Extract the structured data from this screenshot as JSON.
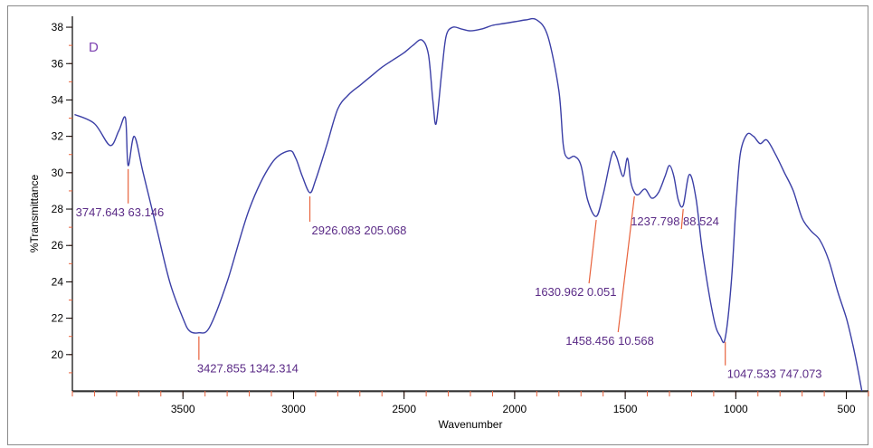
{
  "chart_data": {
    "type": "line",
    "panel_label": "D",
    "xlabel": "Wavenumber",
    "ylabel": "%Transmittance",
    "x_reversed": true,
    "xlim": [
      4000,
      400
    ],
    "ylim": [
      18,
      38.6
    ],
    "x_ticks": [
      3500,
      3000,
      2500,
      2000,
      1500,
      1000,
      500
    ],
    "y_ticks": [
      20,
      22,
      24,
      26,
      28,
      30,
      32,
      34,
      36,
      38
    ],
    "line_color": "#3b3fa6",
    "annotation_color": "#e8623c",
    "series": [
      {
        "x": [
          3990,
          3900,
          3830,
          3790,
          3760,
          3748,
          3720,
          3680,
          3620,
          3560,
          3500,
          3470,
          3428,
          3380,
          3300,
          3200,
          3100,
          3020,
          2990,
          2960,
          2926,
          2900,
          2850,
          2800,
          2750,
          2700,
          2650,
          2600,
          2550,
          2500,
          2460,
          2420,
          2390,
          2370,
          2355,
          2330,
          2310,
          2280,
          2240,
          2200,
          2150,
          2100,
          2050,
          2000,
          1950,
          1900,
          1850,
          1800,
          1780,
          1760,
          1730,
          1700,
          1670,
          1631,
          1600,
          1560,
          1540,
          1510,
          1490,
          1475,
          1458,
          1440,
          1410,
          1380,
          1350,
          1320,
          1300,
          1280,
          1260,
          1238,
          1210,
          1180,
          1150,
          1100,
          1070,
          1048,
          1020,
          1000,
          980,
          950,
          920,
          890,
          860,
          820,
          780,
          740,
          700,
          660,
          620,
          580,
          540,
          500,
          470,
          445,
          430
        ],
        "y": [
          33.2,
          32.7,
          31.5,
          32.3,
          33.0,
          30.4,
          32.0,
          30.0,
          27.0,
          24.0,
          22.0,
          21.3,
          21.2,
          21.5,
          24.0,
          28.0,
          30.5,
          31.2,
          30.8,
          29.8,
          28.9,
          29.6,
          31.5,
          33.5,
          34.3,
          34.8,
          35.3,
          35.8,
          36.2,
          36.6,
          37.0,
          37.3,
          36.5,
          34.0,
          32.7,
          35.5,
          37.5,
          38.0,
          37.9,
          37.8,
          37.9,
          38.1,
          38.2,
          38.3,
          38.4,
          38.4,
          37.5,
          34.5,
          31.5,
          30.8,
          30.9,
          30.4,
          28.5,
          27.6,
          28.8,
          31.0,
          30.9,
          29.8,
          30.8,
          29.5,
          28.9,
          28.8,
          29.1,
          28.6,
          28.9,
          29.8,
          30.4,
          29.8,
          28.5,
          28.2,
          29.9,
          28.6,
          25.6,
          22.0,
          21.0,
          20.9,
          24.0,
          28.0,
          31.0,
          32.1,
          32.0,
          31.6,
          31.8,
          31.0,
          30.0,
          29.0,
          27.5,
          26.8,
          26.3,
          25.2,
          23.5,
          22.0,
          20.5,
          19.0,
          18.0
        ]
      }
    ],
    "annotations": [
      {
        "x": 3747.643,
        "y": 30.4,
        "text": "3747.643  63.146"
      },
      {
        "x": 3427.855,
        "y": 21.2,
        "text": "3427.855  1342.314"
      },
      {
        "x": 2926.083,
        "y": 28.9,
        "text": "2926.083  205.068"
      },
      {
        "x": 1630.962,
        "y": 27.6,
        "text": "1630.962  0.051"
      },
      {
        "x": 1458.456,
        "y": 28.9,
        "text": "1458.456  10.568"
      },
      {
        "x": 1237.798,
        "y": 28.2,
        "text": "1237.798  88.524"
      },
      {
        "x": 1047.533,
        "y": 20.9,
        "text": "1047.533  747.073"
      }
    ]
  }
}
